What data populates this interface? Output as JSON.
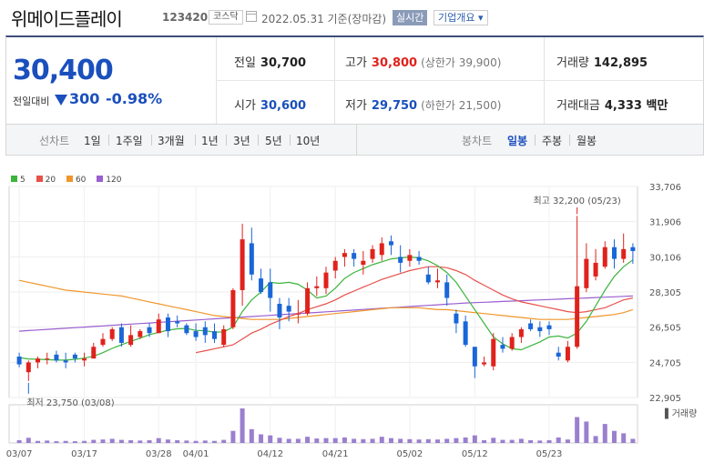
{
  "header": {
    "stock_name": "위메이드플레이",
    "stock_code": "123420",
    "market": "코스닥",
    "date_basis": "2022.05.31 기준(장마감)",
    "realtime_label": "실시간",
    "company_info_label": "기업개요 ▾"
  },
  "quote": {
    "current_price": "30,400",
    "prev_compare_label": "전일대비",
    "change": "300",
    "change_pct": "-0.98%",
    "direction": "down",
    "items": [
      {
        "label": "전일",
        "value": "30,700",
        "color": "black"
      },
      {
        "label": "고가",
        "value": "30,800",
        "sub": "(상한가 39,900)",
        "color": "red"
      },
      {
        "label": "거래량",
        "value": "142,895",
        "color": "black"
      },
      {
        "label": "시가",
        "value": "30,600",
        "color": "blue"
      },
      {
        "label": "저가",
        "value": "29,750",
        "sub": "(하한가 21,500)",
        "color": "blue"
      },
      {
        "label": "거래대금",
        "value": "4,333 백만",
        "color": "black"
      }
    ]
  },
  "tabs": {
    "line_chart_label": "선차트",
    "line_periods": [
      "1일",
      "1주일",
      "3개월",
      "1년",
      "3년",
      "5년",
      "10년"
    ],
    "candle_chart_label": "봉차트",
    "candle_periods": [
      "일봉",
      "주봉",
      "월봉"
    ],
    "active_candle": "일봉"
  },
  "chart_data": {
    "type": "candlestick",
    "legend": [
      "5",
      "20",
      "60",
      "120"
    ],
    "colors": {
      "up": "#e0221c",
      "down": "#1a66d8",
      "ma5": "#3cb43c",
      "ma20": "#e8504a",
      "ma60": "#f0962a",
      "ma120": "#9a5fd0",
      "volume": "#9b7fcf"
    },
    "y_ticks": [
      "33,706",
      "31,906",
      "30,106",
      "28,305",
      "26,505",
      "24,705",
      "22,905"
    ],
    "ylim": [
      22905,
      33706
    ],
    "x_ticks": [
      "03/07",
      "03/17",
      "03/28",
      "04/01",
      "04/12",
      "04/21",
      "05/02",
      "05/12",
      "05/23"
    ],
    "high_annotation": "최고 32,200 (05/23)",
    "low_annotation": "최저 23,750 (03/08)",
    "volume_label": "거래량",
    "candles": [
      [
        25000,
        25200,
        24450,
        24600
      ],
      [
        24200,
        24800,
        23750,
        24700
      ],
      [
        24700,
        25000,
        24400,
        24900
      ],
      [
        24900,
        25200,
        24600,
        24900
      ],
      [
        25100,
        25300,
        24700,
        24800
      ],
      [
        24800,
        25200,
        24400,
        24700
      ],
      [
        25100,
        25200,
        24700,
        24900
      ],
      [
        24800,
        25200,
        24500,
        24900
      ],
      [
        24900,
        25700,
        24900,
        25500
      ],
      [
        25600,
        26200,
        25500,
        25900
      ],
      [
        25900,
        26500,
        25800,
        26400
      ],
      [
        26500,
        26700,
        25500,
        25700
      ],
      [
        25600,
        26600,
        25500,
        26100
      ],
      [
        26000,
        26400,
        25900,
        26300
      ],
      [
        26500,
        26700,
        26000,
        26200
      ],
      [
        26200,
        27200,
        26200,
        26900
      ],
      [
        27000,
        27200,
        26000,
        26300
      ],
      [
        26800,
        27100,
        26500,
        26700
      ],
      [
        26600,
        26700,
        26100,
        26200
      ],
      [
        26300,
        26700,
        25800,
        26000
      ],
      [
        26500,
        26800,
        25700,
        26100
      ],
      [
        26300,
        26700,
        25700,
        25900
      ],
      [
        25600,
        26600,
        25500,
        26400
      ],
      [
        26500,
        28500,
        26400,
        28400
      ],
      [
        28400,
        31800,
        27600,
        31000
      ],
      [
        30800,
        31600,
        28900,
        29200
      ],
      [
        29000,
        29500,
        28200,
        28300
      ],
      [
        28800,
        29500,
        27300,
        28000
      ],
      [
        27700,
        28000,
        26400,
        27000
      ],
      [
        27600,
        28000,
        26800,
        27300
      ],
      [
        27200,
        27900,
        26700,
        27200
      ],
      [
        27200,
        28800,
        27100,
        28500
      ],
      [
        28500,
        29100,
        28100,
        28600
      ],
      [
        28500,
        29600,
        28200,
        29300
      ],
      [
        29400,
        30100,
        29000,
        29900
      ],
      [
        30100,
        30500,
        29600,
        30300
      ],
      [
        30300,
        30500,
        29600,
        30000
      ],
      [
        29700,
        30400,
        29200,
        29900
      ],
      [
        30000,
        30700,
        29800,
        30500
      ],
      [
        30200,
        31100,
        29900,
        30800
      ],
      [
        30900,
        31200,
        30200,
        30700
      ],
      [
        30100,
        30700,
        29300,
        29800
      ],
      [
        29900,
        30500,
        29600,
        30200
      ],
      [
        30100,
        30400,
        29700,
        29900
      ],
      [
        29200,
        29600,
        28700,
        28800
      ],
      [
        28800,
        29500,
        28500,
        28900
      ],
      [
        28800,
        29200,
        27600,
        28000
      ],
      [
        27200,
        27400,
        26200,
        26700
      ],
      [
        26800,
        27100,
        25500,
        25600
      ],
      [
        25500,
        25500,
        23900,
        24500
      ],
      [
        24600,
        25000,
        24500,
        24700
      ],
      [
        24500,
        26200,
        24300,
        25900
      ],
      [
        25600,
        26000,
        25200,
        25400
      ],
      [
        25400,
        26200,
        25300,
        26000
      ],
      [
        26000,
        26500,
        25700,
        26400
      ],
      [
        26700,
        26900,
        26300,
        26400
      ],
      [
        26500,
        26800,
        26000,
        26300
      ],
      [
        26600,
        26800,
        26100,
        26400
      ],
      [
        25200,
        25500,
        24800,
        25000
      ],
      [
        24800,
        25800,
        24700,
        25500
      ],
      [
        25500,
        32200,
        25400,
        28600
      ],
      [
        28500,
        30800,
        28300,
        30000
      ],
      [
        29100,
        30500,
        28900,
        29800
      ],
      [
        29600,
        30900,
        29500,
        30600
      ],
      [
        30600,
        31000,
        29500,
        30000
      ],
      [
        30000,
        31300,
        29800,
        30500
      ],
      [
        30600,
        30800,
        29750,
        30400
      ]
    ],
    "ma5": [
      24950,
      24880,
      24860,
      24840,
      24820,
      24820,
      24860,
      24920,
      25020,
      25200,
      25420,
      25600,
      25780,
      25940,
      26120,
      26240,
      26350,
      26420,
      26440,
      26340,
      26320,
      26250,
      26260,
      26520,
      27300,
      27900,
      28300,
      28800,
      28750,
      28800,
      28700,
      28400,
      28000,
      28100,
      28500,
      29000,
      29300,
      29500,
      29700,
      29850,
      30000,
      30050,
      30100,
      30050,
      29900,
      29650,
      29300,
      28800,
      28100,
      27400,
      26700,
      26000,
      25650,
      25400,
      25350,
      25550,
      25750,
      26000,
      26050,
      25950,
      26200,
      26800,
      27600,
      28400,
      29100,
      29600,
      29950
    ],
    "ma20": [
      null,
      null,
      null,
      null,
      null,
      null,
      null,
      null,
      null,
      null,
      null,
      null,
      null,
      null,
      null,
      null,
      null,
      null,
      null,
      25200,
      25300,
      25400,
      25500,
      25600,
      25900,
      26200,
      26400,
      26650,
      26850,
      27050,
      27200,
      27400,
      27550,
      27700,
      27900,
      28150,
      28350,
      28550,
      28750,
      28950,
      29100,
      29250,
      29400,
      29500,
      29600,
      29600,
      29550,
      29400,
      29200,
      28900,
      28650,
      28400,
      28150,
      27950,
      27800,
      27700,
      27600,
      27500,
      27400,
      27300,
      27250,
      27300,
      27400,
      27500,
      27700,
      27900,
      28000
    ],
    "ma60": [
      28900,
      28800,
      28700,
      28600,
      28500,
      28400,
      28350,
      28300,
      28250,
      28200,
      28150,
      28100,
      28000,
      27900,
      27800,
      27700,
      27600,
      27500,
      27400,
      27300,
      27200,
      27100,
      27050,
      27000,
      26950,
      26900,
      26900,
      26900,
      26900,
      26950,
      27000,
      27050,
      27100,
      27150,
      27200,
      27250,
      27300,
      27350,
      27400,
      27450,
      27500,
      27500,
      27500,
      27500,
      27450,
      27400,
      27400,
      27350,
      27300,
      27250,
      27200,
      27150,
      27100,
      27050,
      27000,
      26950,
      26900,
      26900,
      26900,
      26900,
      26950,
      27000,
      27050,
      27100,
      27150,
      27250,
      27400
    ],
    "ma120": [
      26300,
      26330,
      26360,
      26390,
      26420,
      26450,
      26480,
      26510,
      26540,
      26570,
      26600,
      26630,
      26660,
      26690,
      26720,
      26750,
      26780,
      26810,
      26840,
      26870,
      26900,
      26930,
      26960,
      26990,
      27020,
      27050,
      27080,
      27110,
      27140,
      27170,
      27200,
      27230,
      27260,
      27290,
      27320,
      27350,
      27380,
      27410,
      27440,
      27470,
      27500,
      27530,
      27560,
      27590,
      27620,
      27650,
      27680,
      27710,
      27740,
      27760,
      27780,
      27800,
      27820,
      27840,
      27860,
      27880,
      27900,
      27920,
      27940,
      27960,
      27980,
      28000,
      28020,
      28040,
      28060,
      28080,
      28100
    ],
    "volume": [
      8,
      15,
      6,
      7,
      5,
      6,
      5,
      6,
      9,
      10,
      12,
      9,
      8,
      7,
      8,
      14,
      10,
      8,
      7,
      6,
      7,
      6,
      9,
      35,
      100,
      40,
      25,
      22,
      15,
      12,
      12,
      18,
      13,
      14,
      14,
      16,
      12,
      11,
      12,
      18,
      14,
      12,
      11,
      10,
      11,
      10,
      12,
      14,
      16,
      22,
      8,
      15,
      9,
      9,
      12,
      8,
      7,
      8,
      16,
      10,
      75,
      62,
      20,
      55,
      35,
      28,
      12
    ]
  }
}
